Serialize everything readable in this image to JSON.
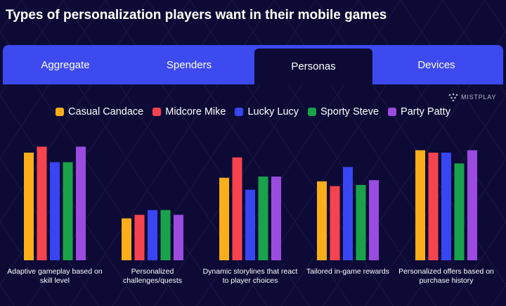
{
  "title": "Types of personalization players want in their mobile games",
  "tabs": [
    {
      "label": "Aggregate",
      "active": false
    },
    {
      "label": "Spenders",
      "active": false
    },
    {
      "label": "Personas",
      "active": true
    },
    {
      "label": "Devices",
      "active": false
    }
  ],
  "brand": {
    "name": "MISTPLAY",
    "icon": "mistplay-logo-icon"
  },
  "colors": {
    "background": "#0d0b35",
    "tab_bar": "#3d4af0"
  },
  "chart_data": {
    "type": "bar",
    "categories": [
      "Adaptive gameplay based on skill level",
      "Personalized challenges/quests",
      "Dynamic storylines that react to player choices",
      "Tailored in-game rewards",
      "Personalized offers based on purchase history"
    ],
    "series": [
      {
        "name": "Casual Candace",
        "color": "#f9ae1a",
        "values": [
          90,
          35,
          69,
          66,
          92
        ]
      },
      {
        "name": "Midcore Mike",
        "color": "#f7434e",
        "values": [
          95,
          38,
          86,
          62,
          90
        ]
      },
      {
        "name": "Lucky Lucy",
        "color": "#3845f2",
        "values": [
          82,
          42,
          59,
          78,
          90
        ]
      },
      {
        "name": "Sporty Steve",
        "color": "#1aa24b",
        "values": [
          82,
          42,
          70,
          63,
          81
        ]
      },
      {
        "name": "Party Patty",
        "color": "#9b4be0",
        "values": [
          95,
          38,
          70,
          67,
          92
        ]
      }
    ],
    "ylim": [
      0,
      100
    ],
    "grid": false,
    "axis_labels_visible": false,
    "legend_position": "top-center"
  }
}
